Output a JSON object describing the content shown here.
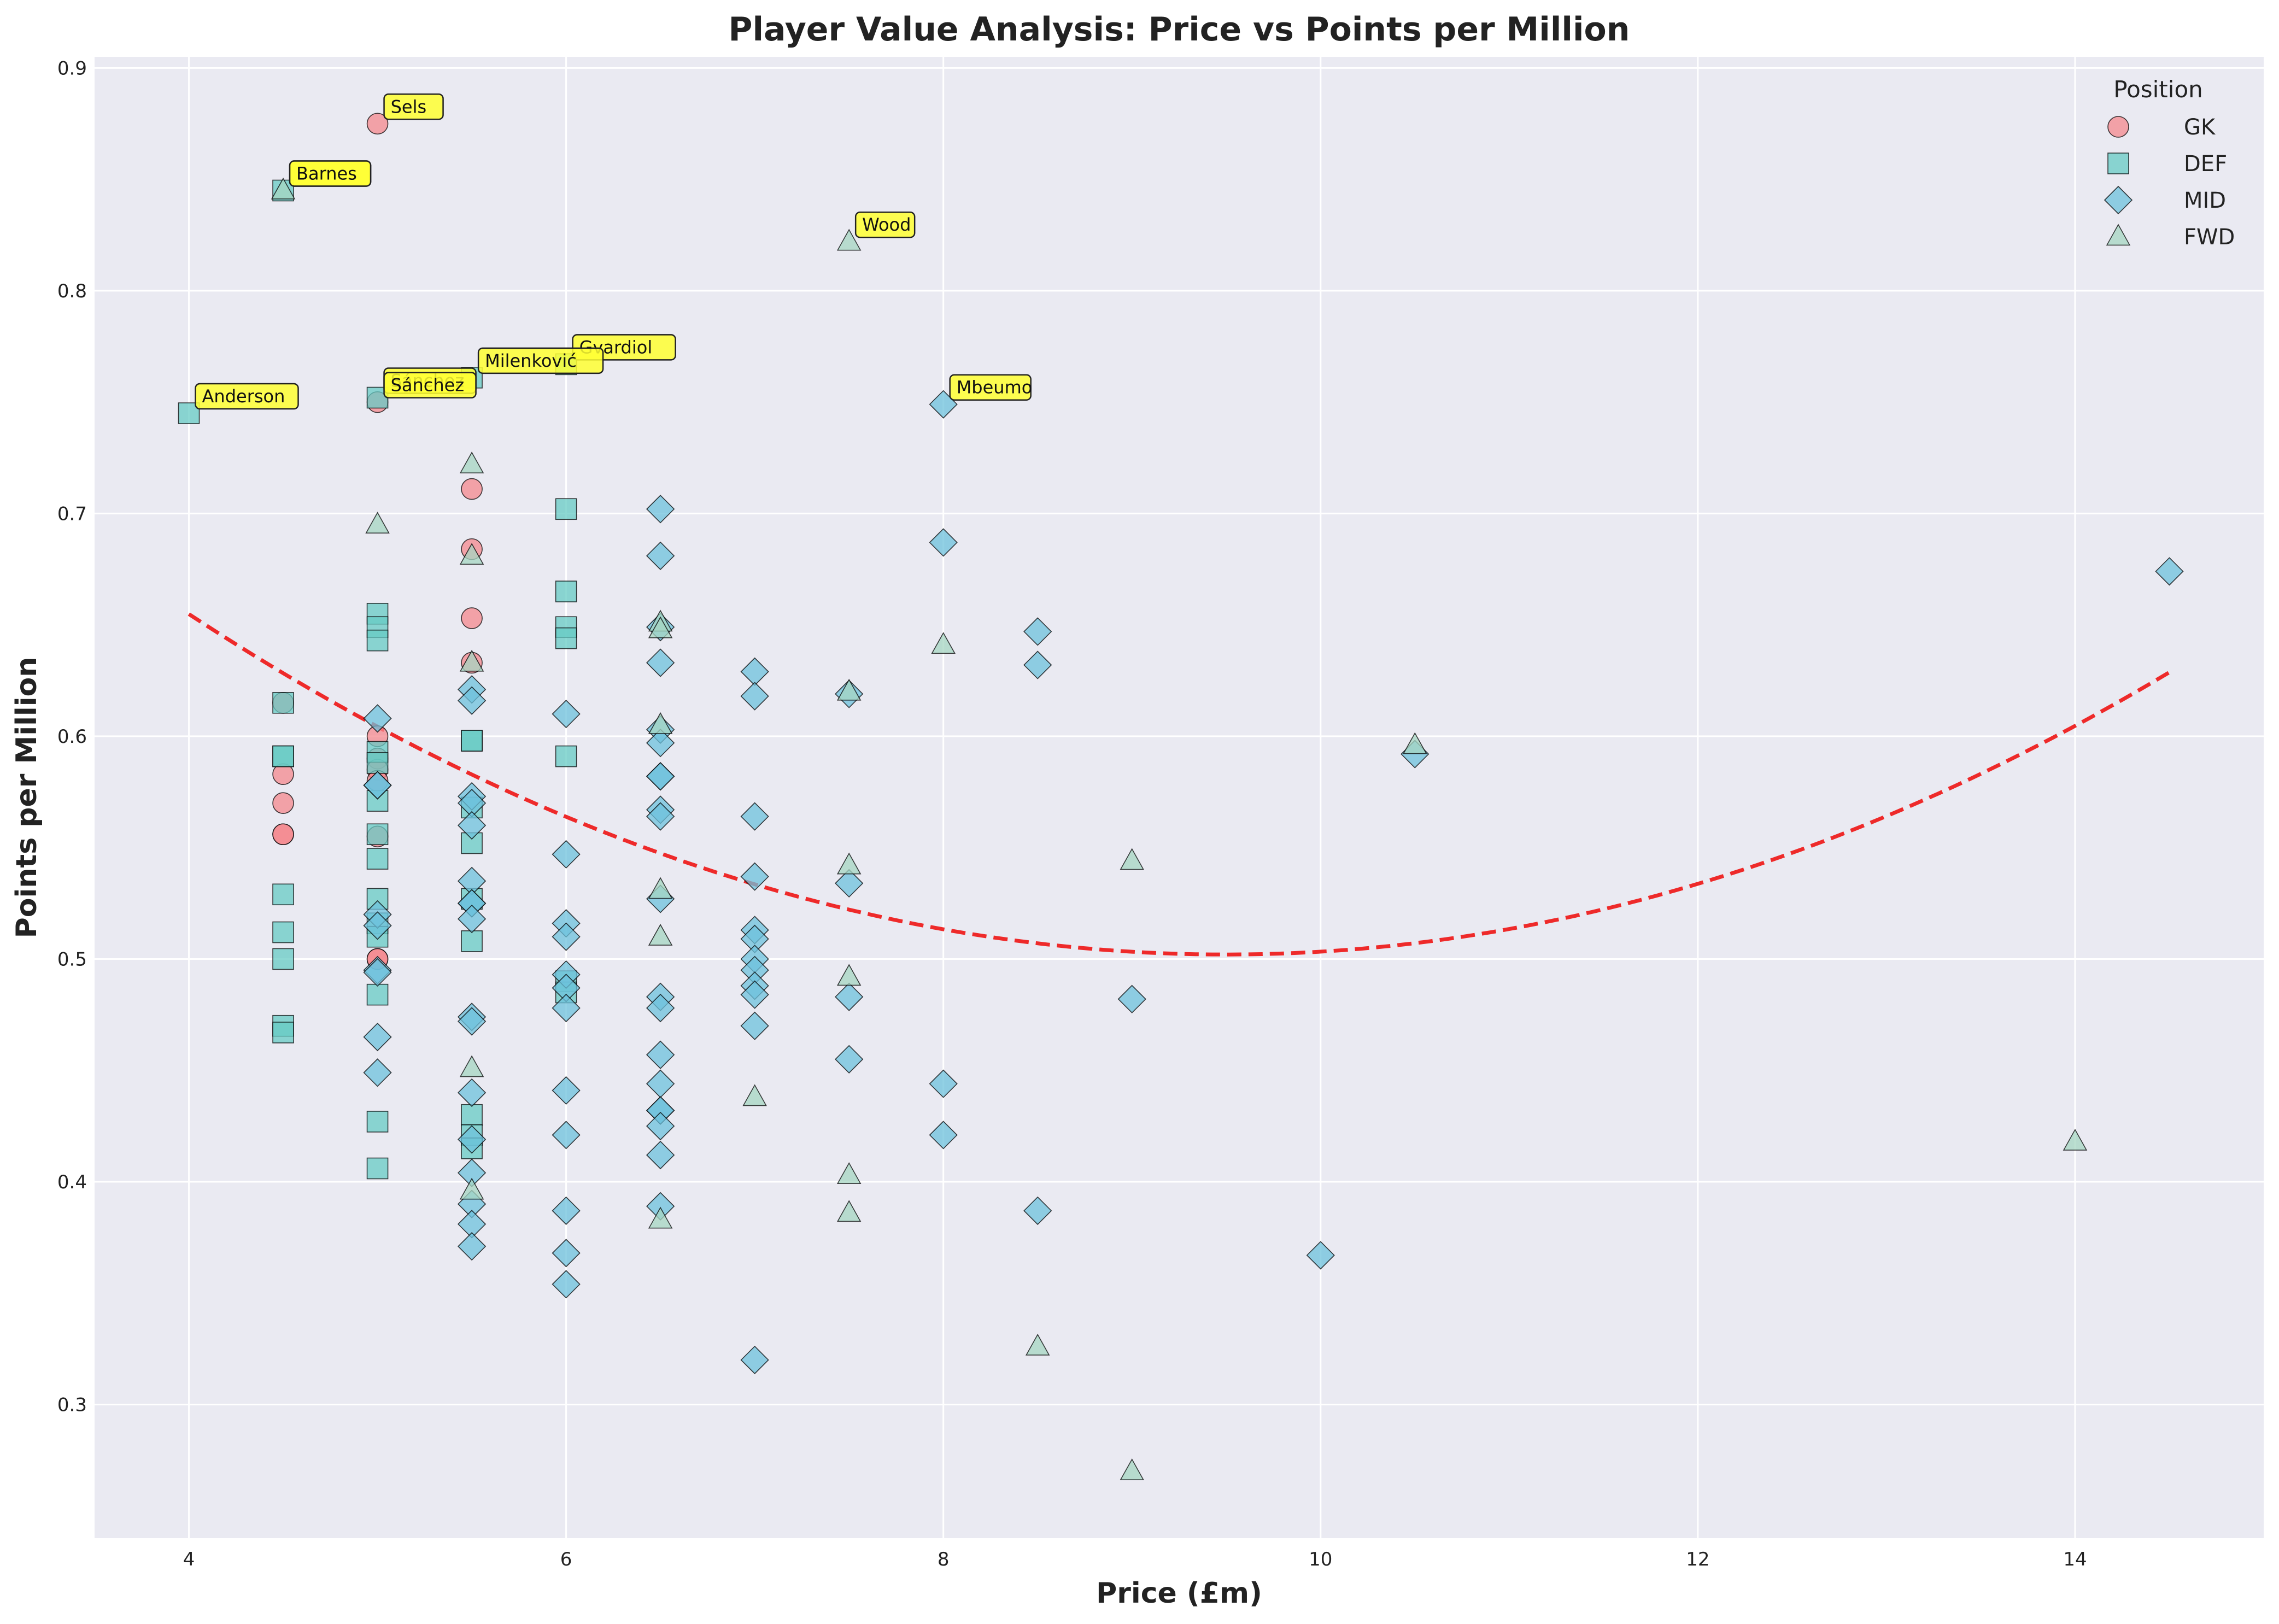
{
  "chart_data": {
    "type": "scatter",
    "title": "Player Value Analysis: Price vs Points per Million",
    "xlabel": "Price (£m)",
    "ylabel": "Points per Million",
    "xlim": [
      3.5,
      15.0
    ],
    "ylim": [
      0.24,
      0.905
    ],
    "xticks": [
      4,
      6,
      8,
      10,
      12,
      14
    ],
    "yticks": [
      0.3,
      0.4,
      0.5,
      0.6,
      0.7,
      0.8,
      0.9
    ],
    "grid": true,
    "legend": {
      "title": "Position",
      "placement": "top-right"
    },
    "series": [
      {
        "name": "GK",
        "marker": "circle",
        "color": "#F4888E",
        "points": [
          [
            4.5,
            0.615
          ],
          [
            4.5,
            0.583
          ],
          [
            4.5,
            0.57
          ],
          [
            4.5,
            0.556
          ],
          [
            4.5,
            0.556
          ],
          [
            5.0,
            0.875
          ],
          [
            5.0,
            0.75
          ],
          [
            5.0,
            0.6
          ],
          [
            5.0,
            0.59
          ],
          [
            5.0,
            0.585
          ],
          [
            5.0,
            0.58
          ],
          [
            5.0,
            0.555
          ],
          [
            5.0,
            0.5
          ],
          [
            5.0,
            0.5
          ],
          [
            5.5,
            0.711
          ],
          [
            5.5,
            0.684
          ],
          [
            5.5,
            0.653
          ],
          [
            5.5,
            0.633
          ]
        ]
      },
      {
        "name": "DEF",
        "marker": "square",
        "color": "#67CBC4",
        "points": [
          [
            4.0,
            0.745
          ],
          [
            4.5,
            0.845
          ],
          [
            4.5,
            0.615
          ],
          [
            4.5,
            0.591
          ],
          [
            4.5,
            0.591
          ],
          [
            4.5,
            0.529
          ],
          [
            4.5,
            0.512
          ],
          [
            4.5,
            0.5
          ],
          [
            4.5,
            0.47
          ],
          [
            4.5,
            0.467
          ],
          [
            5.0,
            0.752
          ],
          [
            5.0,
            0.655
          ],
          [
            5.0,
            0.649
          ],
          [
            5.0,
            0.643
          ],
          [
            5.0,
            0.593
          ],
          [
            5.0,
            0.588
          ],
          [
            5.0,
            0.571
          ],
          [
            5.0,
            0.556
          ],
          [
            5.0,
            0.545
          ],
          [
            5.0,
            0.527
          ],
          [
            5.0,
            0.516
          ],
          [
            5.0,
            0.51
          ],
          [
            5.0,
            0.484
          ],
          [
            5.0,
            0.427
          ],
          [
            5.0,
            0.406
          ],
          [
            5.5,
            0.761
          ],
          [
            5.5,
            0.598
          ],
          [
            5.5,
            0.598
          ],
          [
            5.5,
            0.568
          ],
          [
            5.5,
            0.552
          ],
          [
            5.5,
            0.527
          ],
          [
            5.5,
            0.508
          ],
          [
            5.5,
            0.43
          ],
          [
            5.5,
            0.421
          ],
          [
            5.5,
            0.415
          ],
          [
            6.0,
            0.767
          ],
          [
            6.0,
            0.702
          ],
          [
            6.0,
            0.665
          ],
          [
            6.0,
            0.649
          ],
          [
            6.0,
            0.644
          ],
          [
            6.0,
            0.591
          ],
          [
            6.0,
            0.49
          ],
          [
            6.0,
            0.485
          ]
        ]
      },
      {
        "name": "MID",
        "marker": "diamond",
        "color": "#6DC2DC",
        "points": [
          [
            5.0,
            0.608
          ],
          [
            5.0,
            0.578
          ],
          [
            5.0,
            0.578
          ],
          [
            5.0,
            0.52
          ],
          [
            5.0,
            0.515
          ],
          [
            5.0,
            0.495
          ],
          [
            5.0,
            0.494
          ],
          [
            5.0,
            0.465
          ],
          [
            5.0,
            0.449
          ],
          [
            5.5,
            0.621
          ],
          [
            5.5,
            0.616
          ],
          [
            5.5,
            0.573
          ],
          [
            5.5,
            0.57
          ],
          [
            5.5,
            0.56
          ],
          [
            5.5,
            0.535
          ],
          [
            5.5,
            0.525
          ],
          [
            5.5,
            0.525
          ],
          [
            5.5,
            0.518
          ],
          [
            5.5,
            0.474
          ],
          [
            5.5,
            0.472
          ],
          [
            5.5,
            0.44
          ],
          [
            5.5,
            0.419
          ],
          [
            5.5,
            0.404
          ],
          [
            5.5,
            0.39
          ],
          [
            5.5,
            0.381
          ],
          [
            5.5,
            0.371
          ],
          [
            6.0,
            0.61
          ],
          [
            6.0,
            0.547
          ],
          [
            6.0,
            0.516
          ],
          [
            6.0,
            0.51
          ],
          [
            6.0,
            0.493
          ],
          [
            6.0,
            0.487
          ],
          [
            6.0,
            0.478
          ],
          [
            6.0,
            0.441
          ],
          [
            6.0,
            0.421
          ],
          [
            6.0,
            0.387
          ],
          [
            6.0,
            0.368
          ],
          [
            6.0,
            0.354
          ],
          [
            6.5,
            0.702
          ],
          [
            6.5,
            0.681
          ],
          [
            6.5,
            0.649
          ],
          [
            6.5,
            0.633
          ],
          [
            6.5,
            0.603
          ],
          [
            6.5,
            0.597
          ],
          [
            6.5,
            0.582
          ],
          [
            6.5,
            0.582
          ],
          [
            6.5,
            0.567
          ],
          [
            6.5,
            0.564
          ],
          [
            6.5,
            0.527
          ],
          [
            6.5,
            0.483
          ],
          [
            6.5,
            0.478
          ],
          [
            6.5,
            0.457
          ],
          [
            6.5,
            0.444
          ],
          [
            6.5,
            0.432
          ],
          [
            6.5,
            0.432
          ],
          [
            6.5,
            0.425
          ],
          [
            6.5,
            0.412
          ],
          [
            6.5,
            0.389
          ],
          [
            7.0,
            0.629
          ],
          [
            7.0,
            0.618
          ],
          [
            7.0,
            0.564
          ],
          [
            7.0,
            0.537
          ],
          [
            7.0,
            0.513
          ],
          [
            7.0,
            0.509
          ],
          [
            7.0,
            0.5
          ],
          [
            7.0,
            0.495
          ],
          [
            7.0,
            0.488
          ],
          [
            7.0,
            0.484
          ],
          [
            7.0,
            0.47
          ],
          [
            7.0,
            0.32
          ],
          [
            7.5,
            0.619
          ],
          [
            7.5,
            0.534
          ],
          [
            7.5,
            0.483
          ],
          [
            7.5,
            0.455
          ],
          [
            8.0,
            0.749
          ],
          [
            8.0,
            0.687
          ],
          [
            8.0,
            0.444
          ],
          [
            8.0,
            0.421
          ],
          [
            8.5,
            0.647
          ],
          [
            8.5,
            0.632
          ],
          [
            8.5,
            0.387
          ],
          [
            9.0,
            0.482
          ],
          [
            10.0,
            0.367
          ],
          [
            10.5,
            0.592
          ],
          [
            14.5,
            0.674
          ]
        ]
      },
      {
        "name": "FWD",
        "marker": "triangle",
        "color": "#A5D5C1",
        "points": [
          [
            4.5,
            0.845
          ],
          [
            5.0,
            0.695
          ],
          [
            5.5,
            0.722
          ],
          [
            5.5,
            0.681
          ],
          [
            5.5,
            0.633
          ],
          [
            5.5,
            0.451
          ],
          [
            5.5,
            0.396
          ],
          [
            6.5,
            0.651
          ],
          [
            6.5,
            0.648
          ],
          [
            6.5,
            0.605
          ],
          [
            6.5,
            0.531
          ],
          [
            6.5,
            0.51
          ],
          [
            6.5,
            0.383
          ],
          [
            7.0,
            0.438
          ],
          [
            7.5,
            0.822
          ],
          [
            7.5,
            0.62
          ],
          [
            7.5,
            0.542
          ],
          [
            7.5,
            0.492
          ],
          [
            7.5,
            0.403
          ],
          [
            7.5,
            0.386
          ],
          [
            8.0,
            0.641
          ],
          [
            8.5,
            0.326
          ],
          [
            9.0,
            0.544
          ],
          [
            9.0,
            0.27
          ],
          [
            10.5,
            0.596
          ],
          [
            14.0,
            0.418
          ]
        ]
      }
    ],
    "trend": {
      "style": "dashed",
      "color": "#EE2A2A",
      "x_range": [
        4.0,
        14.5
      ],
      "coefficients": [
        0.00506,
        -0.0961,
        0.9583
      ]
    },
    "annotations": [
      {
        "text": "Sels",
        "x": 5.0,
        "y": 0.875
      },
      {
        "text": "Barnes",
        "x": 4.5,
        "y": 0.845
      },
      {
        "text": "Barnes",
        "x": 4.5,
        "y": 0.845
      },
      {
        "text": "Wood",
        "x": 7.5,
        "y": 0.822
      },
      {
        "text": "Gvardiol",
        "x": 6.0,
        "y": 0.767
      },
      {
        "text": "Milenković",
        "x": 5.5,
        "y": 0.761
      },
      {
        "text": "Anderson",
        "x": 4.0,
        "y": 0.745
      },
      {
        "text": "Sánchez",
        "x": 5.0,
        "y": 0.752
      },
      {
        "text": "Sánchez",
        "x": 5.0,
        "y": 0.75
      },
      {
        "text": "Mbeumo",
        "x": 8.0,
        "y": 0.749
      }
    ]
  }
}
